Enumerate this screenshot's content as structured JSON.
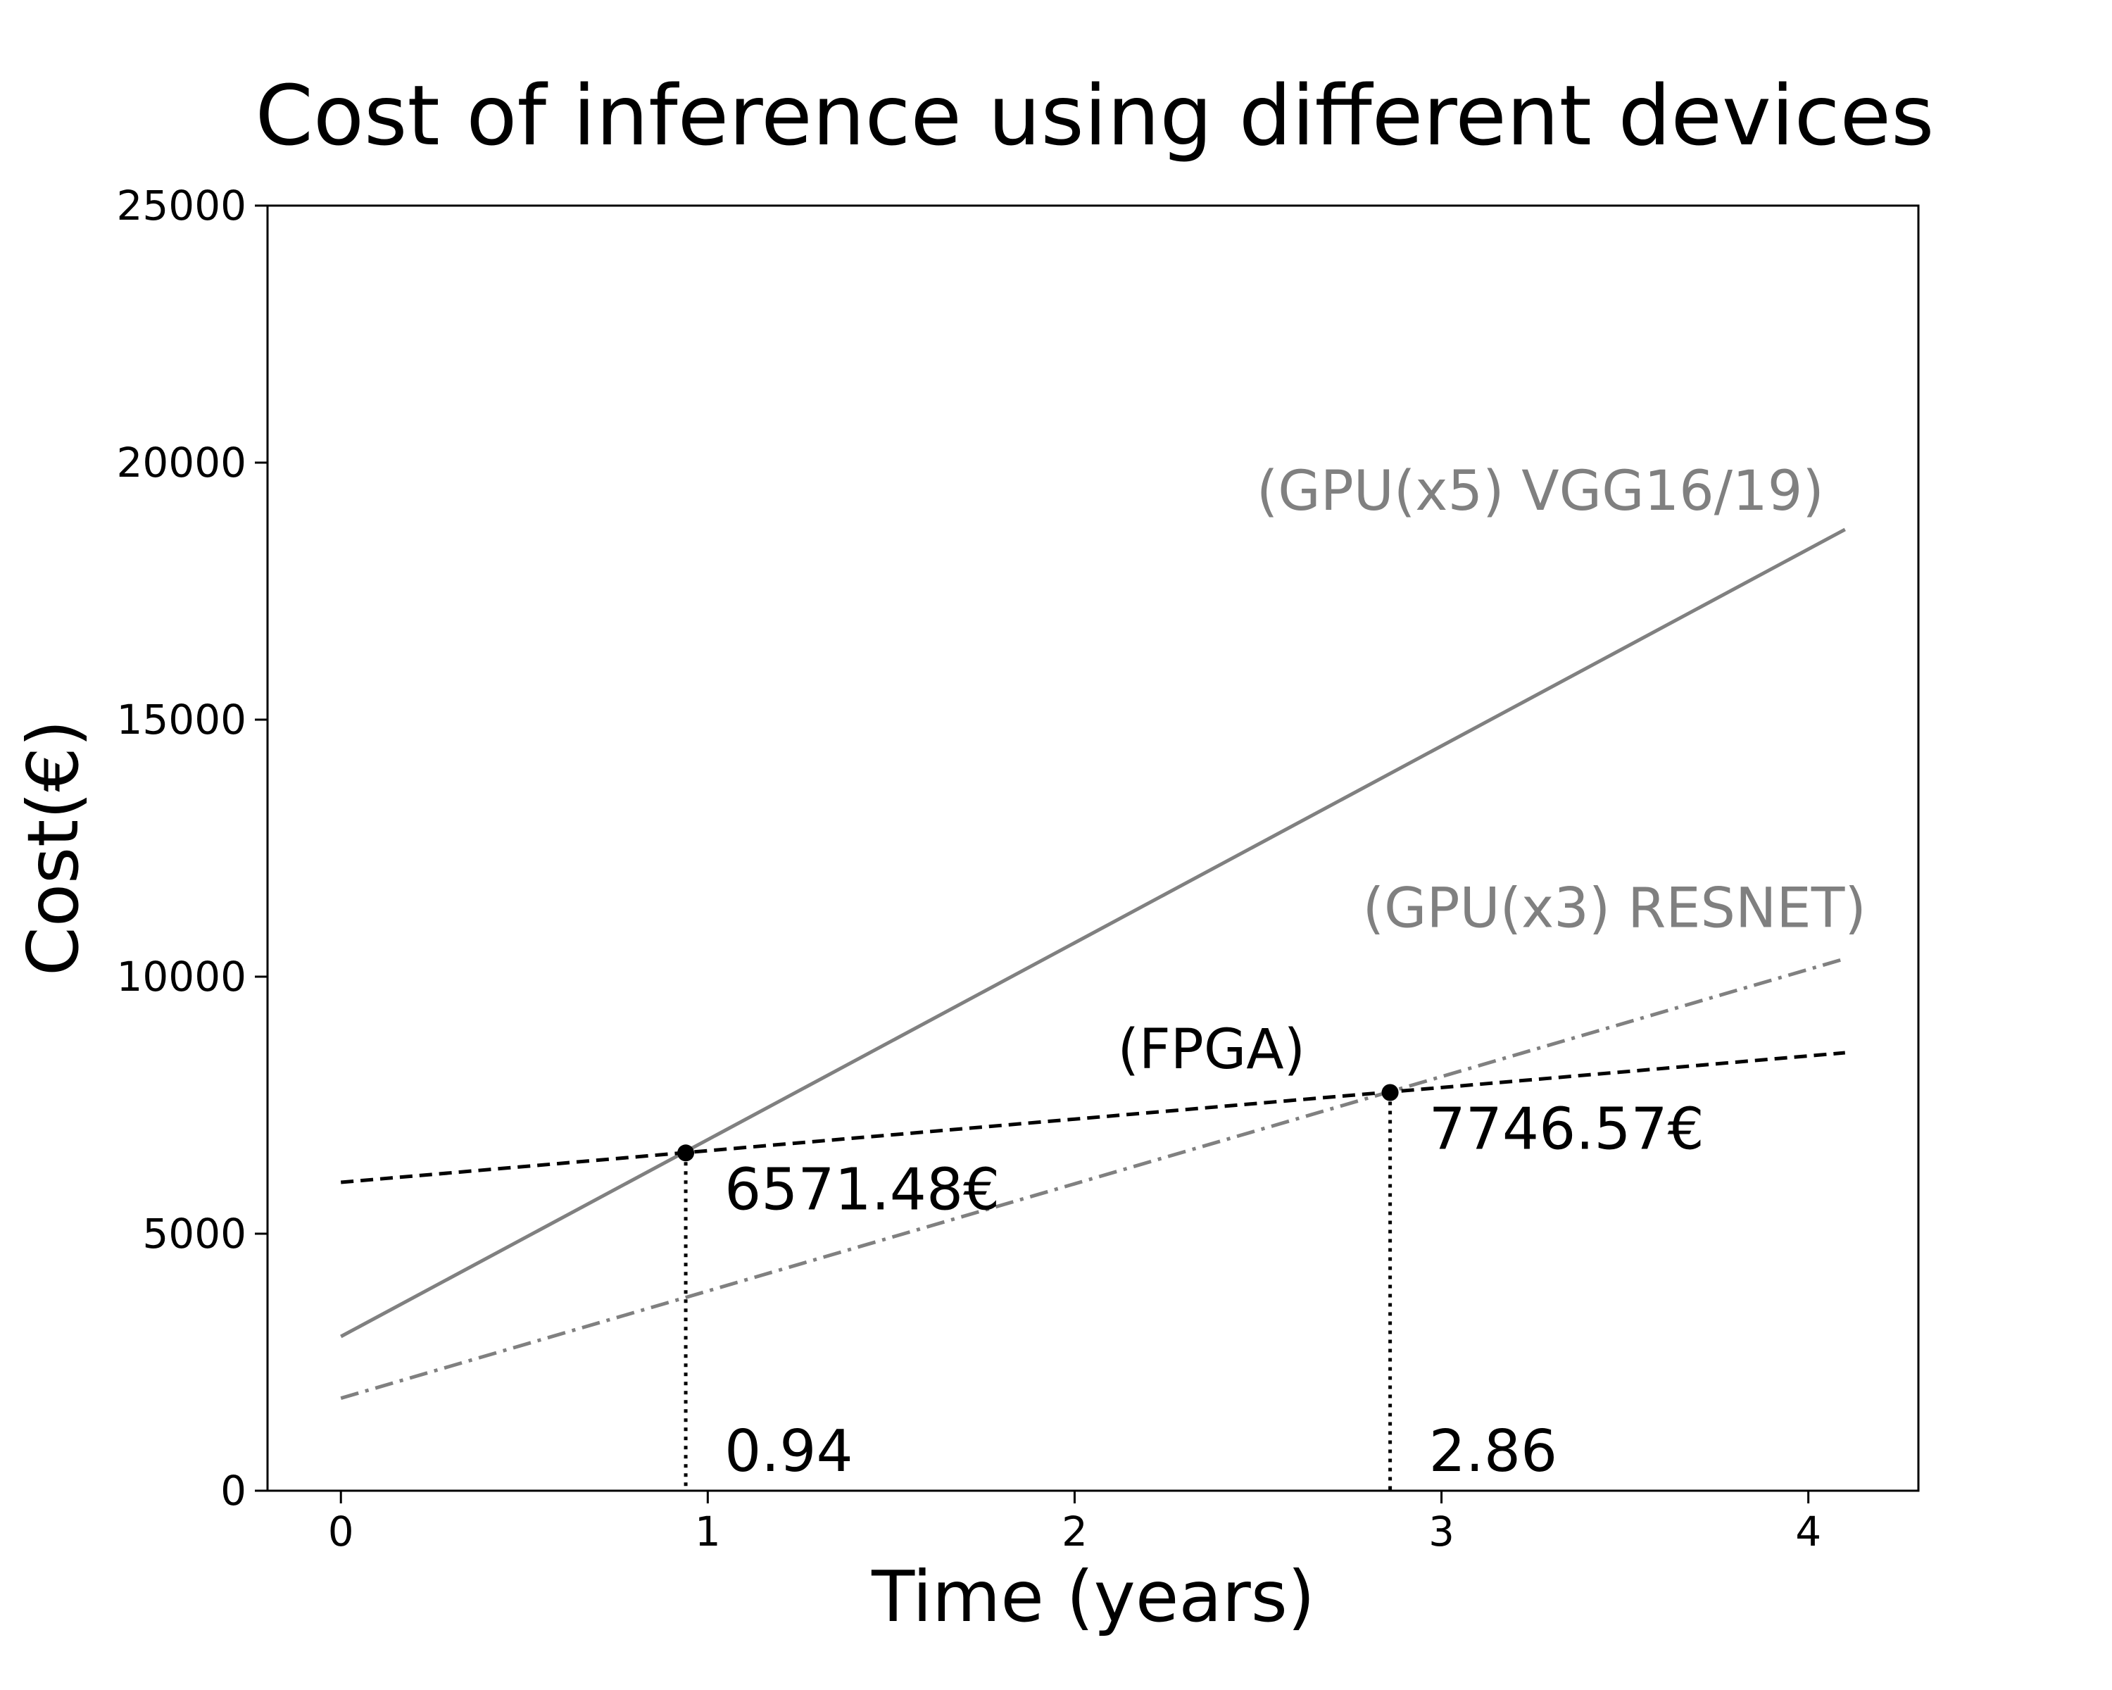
{
  "chart_data": {
    "type": "line",
    "title": "Cost of inference using different devices",
    "xlabel": "Time (years)",
    "ylabel": "Cost(€)",
    "xlim": [
      -0.2,
      4.3
    ],
    "ylim": [
      0,
      25000
    ],
    "xticks": [
      0,
      1,
      2,
      3,
      4
    ],
    "yticks": [
      0,
      5000,
      10000,
      15000,
      20000,
      25000
    ],
    "grid": false,
    "series": [
      {
        "name": "(GPU(x5) VGG16/19)",
        "x": [
          0,
          4.1
        ],
        "y": [
          3000,
          18700
        ],
        "color": "#808080",
        "dash": "solid"
      },
      {
        "name": "(GPU(x3) RESNET)",
        "x": [
          0,
          4.1
        ],
        "y": [
          1800,
          10350
        ],
        "color": "#808080",
        "dash": "dashdot"
      },
      {
        "name": "(FPGA)",
        "x": [
          0,
          4.1
        ],
        "y": [
          6000,
          8520
        ],
        "color": "#000000",
        "dash": "dashed"
      }
    ],
    "intersections": [
      {
        "x": 0.94,
        "y": 6571.48,
        "x_label": "0.94",
        "y_label": "6571.48€"
      },
      {
        "x": 2.86,
        "y": 7746.57,
        "x_label": "2.86",
        "y_label": "7746.57€"
      }
    ]
  }
}
